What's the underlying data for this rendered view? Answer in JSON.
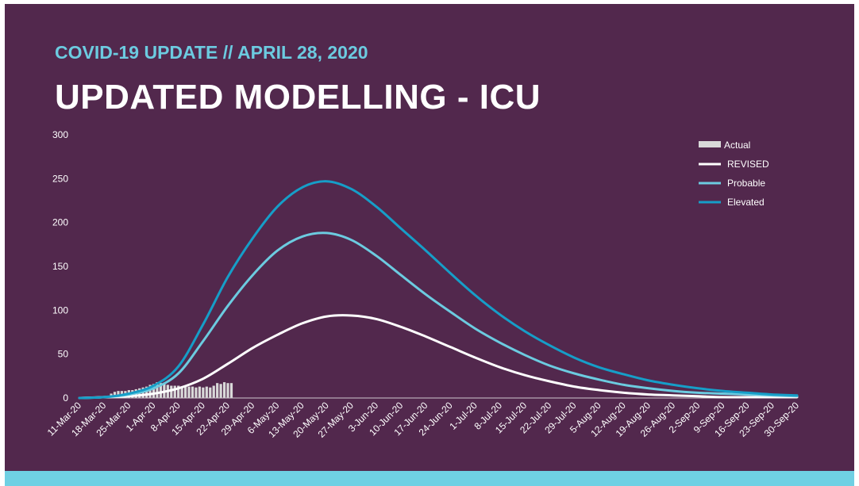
{
  "slide": {
    "subtitle": "COVID-19 UPDATE // APRIL 28, 2020",
    "title": "UPDATED MODELLING - ICU"
  },
  "colors": {
    "background": "#52284d",
    "accent_bar": "#6fd0e3",
    "subtitle": "#6ccbe0",
    "actual": "#d9d9d9",
    "revised": "#ffffff",
    "probable": "#6ccbe0",
    "elevated": "#169ec8"
  },
  "chart_data": {
    "type": "line",
    "title": "",
    "xlabel": "",
    "ylabel": "",
    "ylim": [
      0,
      300
    ],
    "yticks": [
      0,
      50,
      100,
      150,
      200,
      250,
      300
    ],
    "x_range": [
      "11-Mar-20",
      "30-Sep-20"
    ],
    "x_ticks": [
      "11-Mar-20",
      "18-Mar-20",
      "25-Mar-20",
      "1-Apr-20",
      "8-Apr-20",
      "15-Apr-20",
      "22-Apr-20",
      "29-Apr-20",
      "6-May-20",
      "13-May-20",
      "20-May-20",
      "27-May-20",
      "3-Jun-20",
      "10-Jun-20",
      "17-Jun-20",
      "24-Jun-20",
      "1-Jul-20",
      "8-Jul-20",
      "15-Jul-20",
      "22-Jul-20",
      "29-Jul-20",
      "5-Aug-20",
      "12-Aug-20",
      "19-Aug-20",
      "26-Aug-20",
      "2-Sep-20",
      "9-Sep-20",
      "16-Sep-20",
      "23-Sep-20",
      "30-Sep-20"
    ],
    "legend": [
      "Actual",
      "REVISED",
      "Probable",
      "Elevated"
    ],
    "legend_position": "top-right",
    "actual": {
      "name": "Actual",
      "type": "bar",
      "start_day": 9,
      "values": [
        5,
        7,
        8,
        8,
        8,
        9,
        9,
        10,
        11,
        12,
        13,
        15,
        16,
        18,
        17,
        16,
        15,
        14,
        14,
        14,
        13,
        13,
        13,
        13,
        12,
        13,
        12,
        13,
        12,
        14,
        17,
        16,
        18,
        17,
        17
      ]
    },
    "series": [
      {
        "name": "REVISED",
        "days": [
          0,
          7,
          14,
          21,
          28,
          35,
          42,
          49,
          56,
          63,
          70,
          77,
          84,
          91,
          98,
          105,
          112,
          119,
          126,
          133,
          140,
          147,
          154,
          161,
          168,
          175,
          182,
          189,
          196,
          203
        ],
        "values": [
          0,
          1,
          2,
          5,
          11,
          22,
          39,
          57,
          72,
          85,
          93,
          94,
          90,
          81,
          70,
          58,
          46,
          35,
          26,
          19,
          13,
          9,
          6,
          4,
          3,
          2,
          1,
          1,
          1,
          1
        ]
      },
      {
        "name": "Probable",
        "days": [
          0,
          7,
          14,
          21,
          28,
          35,
          42,
          49,
          56,
          63,
          70,
          77,
          84,
          91,
          98,
          105,
          112,
          119,
          126,
          133,
          140,
          147,
          154,
          161,
          168,
          175,
          182,
          189,
          196,
          203
        ],
        "values": [
          0,
          1,
          4,
          11,
          28,
          65,
          105,
          140,
          168,
          184,
          188,
          180,
          162,
          140,
          118,
          98,
          79,
          63,
          49,
          37,
          28,
          21,
          15,
          11,
          8,
          6,
          5,
          4,
          3,
          2
        ]
      },
      {
        "name": "Elevated",
        "days": [
          0,
          7,
          14,
          21,
          28,
          35,
          42,
          49,
          56,
          63,
          70,
          77,
          84,
          91,
          98,
          105,
          112,
          119,
          126,
          133,
          140,
          147,
          154,
          161,
          168,
          175,
          182,
          189,
          196,
          203
        ],
        "values": [
          0,
          1,
          5,
          14,
          36,
          84,
          138,
          182,
          218,
          240,
          247,
          238,
          218,
          193,
          168,
          142,
          117,
          95,
          76,
          60,
          46,
          35,
          27,
          20,
          15,
          11,
          8,
          6,
          4,
          3
        ]
      }
    ]
  }
}
